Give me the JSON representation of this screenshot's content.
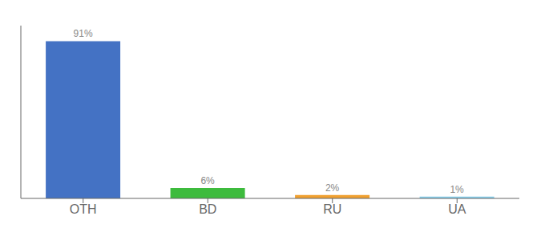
{
  "chart_data": {
    "type": "bar",
    "categories": [
      "OTH",
      "BD",
      "RU",
      "UA"
    ],
    "values": [
      91,
      6,
      2,
      1
    ],
    "value_labels": [
      "91%",
      "6%",
      "2%",
      "1%"
    ],
    "colors": [
      "#4472c4",
      "#3dbb3d",
      "#f0a030",
      "#87ceeb"
    ],
    "ylim": [
      0,
      100
    ],
    "data_labels": true,
    "tick_labels": "x"
  }
}
